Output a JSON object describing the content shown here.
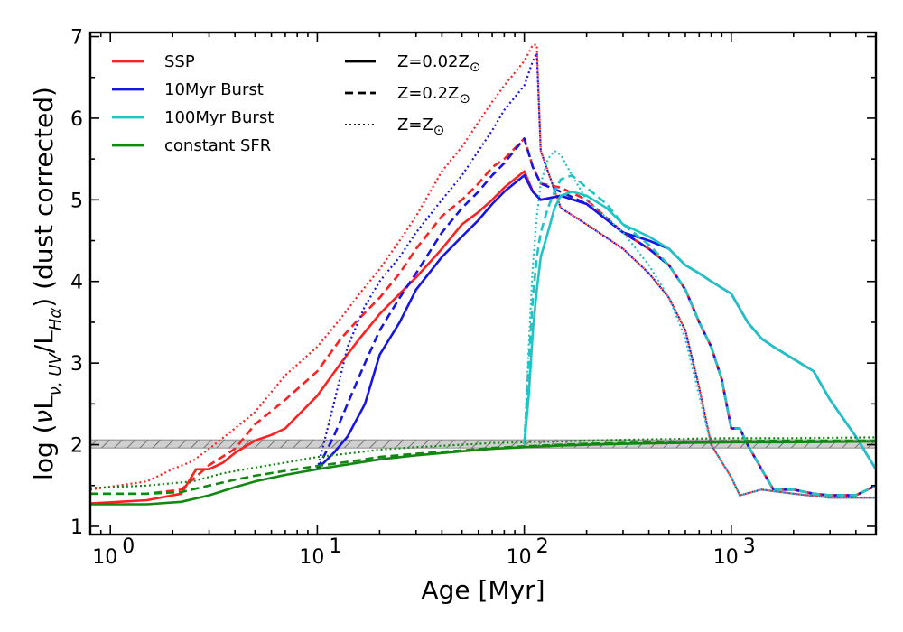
{
  "chart_data": {
    "type": "line",
    "xlabel": "Age [Myr]",
    "ylabel_parts": [
      "log (",
      "ν",
      "L",
      "ν, UV",
      "/L",
      "Hα",
      ") (dust corrected)"
    ],
    "xscale": "log",
    "xlim": [
      0.8,
      5000
    ],
    "ylim": [
      0.9,
      7.05
    ],
    "xticks": [
      {
        "value": 1,
        "label": "10",
        "exp": "0"
      },
      {
        "value": 10,
        "label": "10",
        "exp": "1"
      },
      {
        "value": 100,
        "label": "10",
        "exp": "2"
      },
      {
        "value": 1000,
        "label": "10",
        "exp": "3"
      }
    ],
    "yticks": [
      1,
      2,
      3,
      4,
      5,
      6,
      7
    ],
    "band": {
      "y0": 1.96,
      "y1": 2.06
    },
    "legend_models": [
      {
        "label": "SSP",
        "color": "#ff2020"
      },
      {
        "label": "10Myr Burst",
        "color": "#1515e6"
      },
      {
        "label": "100Myr Burst",
        "color": "#20c4c4"
      },
      {
        "label": "constant SFR",
        "color": "#118811"
      }
    ],
    "legend_metallicity": [
      {
        "label": "Z=0.02Z",
        "sub": "⊙",
        "style": "solid"
      },
      {
        "label": "Z=0.2Z",
        "sub": "⊙",
        "style": "dashed"
      },
      {
        "label": "Z=Z",
        "sub": "⊙",
        "style": "dotted"
      }
    ],
    "series": [
      {
        "model": "SSP",
        "metallicity": "Z=0.02Z⊙",
        "color": "#ff2020",
        "style": "solid",
        "x": [
          0.8,
          1.5,
          2.2,
          2.6,
          3.0,
          3.5,
          4.0,
          5.0,
          6.0,
          7.0,
          8.0,
          10,
          13,
          16,
          20,
          25,
          30,
          40,
          50,
          60,
          70,
          80,
          100,
          110,
          120,
          150,
          200,
          300,
          400,
          500,
          600,
          700,
          800,
          900,
          1000,
          1100,
          1200,
          1400,
          1600,
          2000,
          2500,
          3000,
          4000,
          5000
        ],
        "y": [
          1.28,
          1.32,
          1.4,
          1.7,
          1.7,
          1.78,
          1.9,
          2.05,
          2.12,
          2.2,
          2.35,
          2.6,
          3.0,
          3.3,
          3.6,
          3.85,
          4.05,
          4.4,
          4.7,
          4.85,
          5.0,
          5.15,
          5.35,
          5.1,
          5.0,
          5.05,
          4.95,
          4.6,
          4.4,
          4.2,
          3.9,
          3.5,
          3.2,
          2.8,
          2.2,
          2.2,
          2.0,
          1.7,
          1.45,
          1.45,
          1.4,
          1.38,
          1.38,
          1.5
        ]
      },
      {
        "model": "SSP",
        "metallicity": "Z=0.2Z⊙",
        "color": "#ff2020",
        "style": "dashed",
        "x": [
          0.8,
          1.5,
          2.2,
          3.0,
          4.0,
          5.0,
          7.0,
          10,
          13,
          16,
          20,
          25,
          30,
          40,
          50,
          60,
          70,
          80,
          100,
          110,
          120,
          150,
          200,
          300,
          400,
          500,
          600,
          700,
          800,
          900,
          1000,
          1100,
          1200,
          1400,
          1600,
          2000,
          2500,
          3000,
          4000,
          5000
        ],
        "y": [
          1.4,
          1.4,
          1.45,
          1.75,
          1.95,
          2.25,
          2.55,
          2.9,
          3.3,
          3.55,
          3.8,
          4.1,
          4.4,
          4.8,
          5.0,
          5.2,
          5.4,
          5.5,
          5.75,
          5.4,
          5.2,
          5.15,
          5.0,
          4.6,
          4.4,
          4.2,
          3.9,
          3.5,
          3.2,
          2.8,
          2.2,
          2.2,
          2.0,
          1.7,
          1.45,
          1.45,
          1.4,
          1.38,
          1.38,
          1.5
        ]
      },
      {
        "model": "SSP",
        "metallicity": "Z=Z⊙",
        "color": "#ff2020",
        "style": "dotted",
        "x": [
          0.8,
          1.5,
          2.0,
          2.5,
          3.0,
          4.0,
          5.0,
          7.0,
          10,
          13,
          16,
          20,
          25,
          30,
          40,
          50,
          60,
          70,
          80,
          100,
          110,
          115,
          120,
          150,
          200,
          300,
          400,
          500,
          600,
          700,
          800,
          1000,
          1100,
          1400,
          2000,
          3000,
          5000
        ],
        "y": [
          1.45,
          1.55,
          1.7,
          1.8,
          1.95,
          2.2,
          2.4,
          2.85,
          3.2,
          3.55,
          3.85,
          4.15,
          4.5,
          4.8,
          5.35,
          5.65,
          5.95,
          6.2,
          6.4,
          6.7,
          6.9,
          6.9,
          5.6,
          4.9,
          4.7,
          4.4,
          4.1,
          3.8,
          3.4,
          2.7,
          2.0,
          1.6,
          1.38,
          1.45,
          1.4,
          1.35,
          1.35
        ]
      },
      {
        "model": "10Myr Burst",
        "metallicity": "Z=0.02Z⊙",
        "color": "#1515e6",
        "style": "solid",
        "x": [
          10,
          12,
          14,
          17,
          20,
          25,
          30,
          40,
          50,
          60,
          70,
          80,
          100,
          110,
          120,
          150,
          200,
          300,
          400,
          500,
          600,
          700,
          800,
          1000,
          1200,
          1400,
          1600,
          2000,
          2500,
          3000,
          4000,
          5000
        ],
        "y": [
          1.7,
          1.9,
          2.1,
          2.5,
          3.1,
          3.5,
          3.9,
          4.3,
          4.55,
          4.75,
          4.95,
          5.1,
          5.3,
          5.1,
          5.0,
          5.05,
          4.95,
          4.6,
          4.5,
          4.4,
          4.2,
          4.1,
          4.0,
          3.85,
          3.5,
          3.3,
          3.2,
          3.05,
          2.9,
          2.55,
          2.1,
          1.7
        ]
      },
      {
        "model": "10Myr Burst",
        "metallicity": "Z=0.2Z⊙",
        "color": "#1515e6",
        "style": "dashed",
        "x": [
          10,
          12,
          14,
          17,
          20,
          25,
          30,
          40,
          50,
          60,
          70,
          80,
          100,
          110,
          120,
          150,
          200,
          300,
          400,
          500,
          600,
          700,
          800,
          900,
          1000,
          1100,
          1200,
          1400,
          1600,
          2000,
          2500,
          3000,
          4000,
          5000
        ],
        "y": [
          1.7,
          2.1,
          2.5,
          3.0,
          3.4,
          3.8,
          4.1,
          4.6,
          4.9,
          5.1,
          5.3,
          5.45,
          5.75,
          5.4,
          5.2,
          5.1,
          4.95,
          4.6,
          4.4,
          4.2,
          3.9,
          3.5,
          3.2,
          2.8,
          2.2,
          2.2,
          2.0,
          1.7,
          1.45,
          1.45,
          1.4,
          1.38,
          1.38,
          1.5
        ]
      },
      {
        "model": "10Myr Burst",
        "metallicity": "Z=Z⊙",
        "color": "#1515e6",
        "style": "dotted",
        "x": [
          10,
          12,
          14,
          17,
          20,
          25,
          30,
          40,
          50,
          60,
          70,
          80,
          100,
          110,
          115,
          120,
          150,
          200,
          300,
          400,
          500,
          600,
          700,
          800,
          1000,
          1100,
          1400,
          2000,
          3000,
          5000
        ],
        "y": [
          1.7,
          2.5,
          3.2,
          3.7,
          4.0,
          4.3,
          4.6,
          5.0,
          5.3,
          5.6,
          5.85,
          6.1,
          6.4,
          6.7,
          6.8,
          5.6,
          4.9,
          4.7,
          4.4,
          4.1,
          3.8,
          3.4,
          2.7,
          2.0,
          1.6,
          1.38,
          1.45,
          1.4,
          1.35,
          1.35
        ]
      },
      {
        "model": "100Myr Burst",
        "metallicity": "Z=0.02Z⊙",
        "color": "#20c4c4",
        "style": "solid",
        "x": [
          100,
          105,
          110,
          115,
          120,
          130,
          140,
          150,
          170,
          200,
          250,
          300,
          400,
          500,
          600,
          700,
          800,
          1000,
          1200,
          1400,
          1600,
          2000,
          2500,
          3000,
          4000,
          5000
        ],
        "y": [
          2.0,
          2.6,
          3.4,
          3.9,
          4.3,
          4.6,
          4.9,
          5.05,
          5.1,
          5.05,
          4.9,
          4.7,
          4.55,
          4.4,
          4.2,
          4.1,
          4.0,
          3.85,
          3.5,
          3.3,
          3.2,
          3.05,
          2.9,
          2.55,
          2.1,
          1.7
        ]
      },
      {
        "model": "100Myr Burst",
        "metallicity": "Z=0.2Z⊙",
        "color": "#20c4c4",
        "style": "dashed",
        "x": [
          100,
          105,
          110,
          115,
          120,
          130,
          140,
          150,
          170,
          200,
          250,
          300,
          400,
          500,
          600,
          700,
          800,
          900,
          1000,
          1100,
          1200,
          1400,
          1600,
          2000,
          2500,
          3000,
          4000,
          5000
        ],
        "y": [
          2.0,
          3.0,
          3.8,
          4.3,
          4.6,
          4.9,
          5.1,
          5.25,
          5.3,
          5.15,
          4.95,
          4.7,
          4.45,
          4.2,
          3.9,
          3.5,
          3.2,
          2.8,
          2.2,
          2.2,
          2.0,
          1.7,
          1.45,
          1.45,
          1.4,
          1.38,
          1.38,
          1.5
        ]
      },
      {
        "model": "100Myr Burst",
        "metallicity": "Z=Z⊙",
        "color": "#20c4c4",
        "style": "dotted",
        "x": [
          100,
          105,
          110,
          115,
          120,
          130,
          140,
          150,
          170,
          200,
          300,
          400,
          500,
          600,
          700,
          800,
          1000,
          1100,
          1400,
          2000,
          3000,
          5000
        ],
        "y": [
          2.0,
          3.2,
          4.2,
          4.8,
          5.2,
          5.5,
          5.6,
          5.55,
          5.3,
          5.0,
          4.6,
          4.2,
          3.8,
          3.3,
          2.6,
          2.0,
          1.6,
          1.38,
          1.45,
          1.4,
          1.35,
          1.35
        ]
      },
      {
        "model": "constant SFR",
        "metallicity": "Z=0.02Z⊙",
        "color": "#118811",
        "style": "solid",
        "x": [
          0.8,
          1.5,
          2.2,
          3.0,
          4.0,
          5.0,
          7.0,
          10,
          15,
          20,
          30,
          50,
          70,
          100,
          150,
          200,
          300,
          500,
          1000,
          2000,
          5000
        ],
        "y": [
          1.27,
          1.27,
          1.3,
          1.38,
          1.48,
          1.55,
          1.63,
          1.7,
          1.77,
          1.82,
          1.87,
          1.92,
          1.95,
          1.97,
          1.99,
          2.0,
          2.01,
          2.02,
          2.03,
          2.03,
          2.04
        ]
      },
      {
        "model": "constant SFR",
        "metallicity": "Z=0.2Z⊙",
        "color": "#118811",
        "style": "dashed",
        "x": [
          0.8,
          1.5,
          2.2,
          3.0,
          4.0,
          5.0,
          7.0,
          10,
          15,
          20,
          30,
          50,
          70,
          100,
          150,
          200,
          300,
          500,
          1000,
          2000,
          5000
        ],
        "y": [
          1.4,
          1.4,
          1.42,
          1.5,
          1.57,
          1.62,
          1.68,
          1.74,
          1.8,
          1.85,
          1.89,
          1.93,
          1.96,
          1.98,
          2.0,
          2.01,
          2.02,
          2.03,
          2.04,
          2.05,
          2.05
        ]
      },
      {
        "model": "constant SFR",
        "metallicity": "Z=Z⊙",
        "color": "#118811",
        "style": "dotted",
        "x": [
          0.8,
          1.5,
          2.5,
          3.5,
          5.0,
          7.0,
          10,
          15,
          20,
          30,
          50,
          70,
          100,
          150,
          200,
          300,
          500,
          1000,
          2000,
          5000
        ],
        "y": [
          1.47,
          1.5,
          1.55,
          1.65,
          1.72,
          1.78,
          1.85,
          1.9,
          1.94,
          1.97,
          2.0,
          2.02,
          2.03,
          2.04,
          2.05,
          2.06,
          2.07,
          2.08,
          2.08,
          2.09
        ]
      }
    ]
  }
}
